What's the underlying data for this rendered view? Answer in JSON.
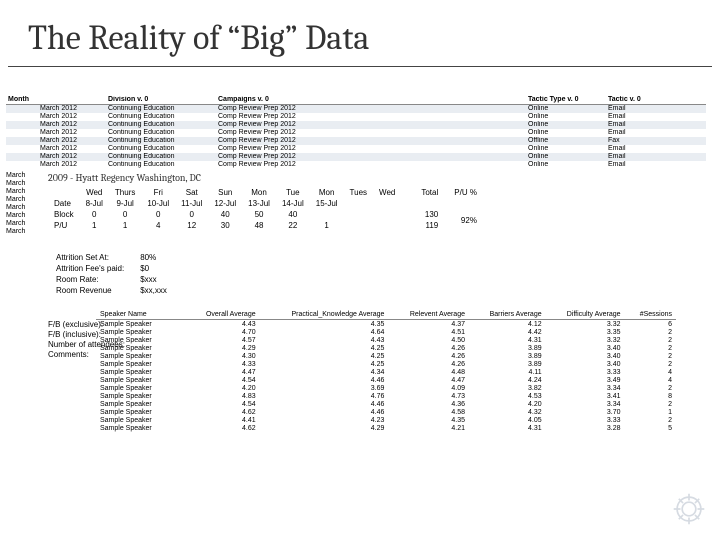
{
  "title": "The Reality of “Big” Data",
  "table1": {
    "headers": {
      "month": "Month",
      "division": "Division v. 0",
      "campaigns": "Campaigns v. 0",
      "tactic_type": "Tactic Type v. 0",
      "tactic": "Tactic v. 0"
    },
    "rows": [
      {
        "m": "March 2012",
        "d": "Continuing Education",
        "c": "Comp Review Prep 2012",
        "tt": "Online",
        "t": "Email"
      },
      {
        "m": "March 2012",
        "d": "Continuing Education",
        "c": "Comp Review Prep 2012",
        "tt": "Online",
        "t": "Email"
      },
      {
        "m": "March 2012",
        "d": "Continuing Education",
        "c": "Comp Review Prep 2012",
        "tt": "Online",
        "t": "Email"
      },
      {
        "m": "March 2012",
        "d": "Continuing Education",
        "c": "Comp Review Prep 2012",
        "tt": "Online",
        "t": "Email"
      },
      {
        "m": "March 2012",
        "d": "Continuing Education",
        "c": "Comp Review Prep 2012",
        "tt": "Offline",
        "t": "Fax"
      },
      {
        "m": "March 2012",
        "d": "Continuing Education",
        "c": "Comp Review Prep 2012",
        "tt": "Online",
        "t": "Email"
      },
      {
        "m": "March 2012",
        "d": "Continuing Education",
        "c": "Comp Review Prep 2012",
        "tt": "Online",
        "t": "Email"
      },
      {
        "m": "March 2012",
        "d": "Continuing Education",
        "c": "Comp Review Prep 2012",
        "tt": "Online",
        "t": "Email"
      }
    ],
    "month_tail": [
      "March",
      "March",
      "March",
      "March",
      "March",
      "March",
      "March",
      "March"
    ]
  },
  "panel2": {
    "header": "2009 - Hyatt Regency Washington, DC",
    "cols": [
      "",
      "Wed",
      "Thurs",
      "Fri",
      "Sat",
      "Sun",
      "Mon",
      "Tue",
      "Mon",
      "Tues",
      "Wed"
    ],
    "dates": [
      "Date",
      "8-Jul",
      "9-Jul",
      "10-Jul",
      "11-Jul",
      "12-Jul",
      "13-Jul",
      "14-Jul",
      "15-Jul",
      "",
      ""
    ],
    "block": [
      "Block",
      "0",
      "0",
      "0",
      "0",
      "40",
      "50",
      "40",
      "",
      "",
      ""
    ],
    "pu": [
      "P/U",
      "1",
      "1",
      "4",
      "12",
      "30",
      "48",
      "22",
      "1",
      "",
      ""
    ],
    "total_label": "Total",
    "pu_pct_label": "P/U %",
    "totals": {
      "block": "130",
      "pu": "119",
      "pct": "92%"
    }
  },
  "panel3": {
    "rows": [
      [
        "Attrition Set At:",
        "80%"
      ],
      [
        "Attrition Fee's paid:",
        "$0"
      ],
      [
        "Room Rate:",
        "$xxx"
      ],
      [
        "Room Revenue",
        "$xx,xxx"
      ]
    ],
    "side_labels": [
      "F/B (exclusive):",
      "F/B (inclusive):",
      "Number of attendees:",
      "Comments:"
    ]
  },
  "table4": {
    "headers": [
      "Speaker Name",
      "Overall Average",
      "Practical_Knowledge Average",
      "Relevent Average",
      "Barriers Average",
      "Difficulty Average",
      "#Sessions"
    ],
    "rows": [
      [
        "Sample Speaker",
        "4.43",
        "4.35",
        "4.37",
        "4.12",
        "3.32",
        "6"
      ],
      [
        "Sample Speaker",
        "4.70",
        "4.64",
        "4.51",
        "4.42",
        "3.35",
        "2"
      ],
      [
        "Sample Speaker",
        "4.57",
        "4.43",
        "4.50",
        "4.31",
        "3.32",
        "2"
      ],
      [
        "Sample Speaker",
        "4.29",
        "4.25",
        "4.26",
        "3.89",
        "3.40",
        "2"
      ],
      [
        "Sample Speaker",
        "4.30",
        "4.25",
        "4.26",
        "3.89",
        "3.40",
        "2"
      ],
      [
        "Sample Speaker",
        "4.33",
        "4.25",
        "4.26",
        "3.89",
        "3.40",
        "2"
      ],
      [
        "Sample Speaker",
        "4.47",
        "4.34",
        "4.48",
        "4.11",
        "3.33",
        "4"
      ],
      [
        "Sample Speaker",
        "4.54",
        "4.46",
        "4.47",
        "4.24",
        "3.49",
        "4"
      ],
      [
        "Sample Speaker",
        "4.20",
        "3.69",
        "4.09",
        "3.82",
        "3.34",
        "2"
      ],
      [
        "Sample Speaker",
        "4.83",
        "4.76",
        "4.73",
        "4.53",
        "3.41",
        "8"
      ],
      [
        "Sample Speaker",
        "4.54",
        "4.46",
        "4.36",
        "4.20",
        "3.34",
        "2"
      ],
      [
        "Sample Speaker",
        "4.62",
        "4.46",
        "4.58",
        "4.32",
        "3.70",
        "1"
      ],
      [
        "Sample Speaker",
        "4.41",
        "4.23",
        "4.35",
        "4.05",
        "3.33",
        "2"
      ],
      [
        "Sample Speaker",
        "4.62",
        "4.29",
        "4.21",
        "4.31",
        "3.28",
        "5"
      ]
    ]
  },
  "colors": {
    "alt_row": "#e9edf2",
    "rule": "#444444",
    "text": "#333333"
  }
}
